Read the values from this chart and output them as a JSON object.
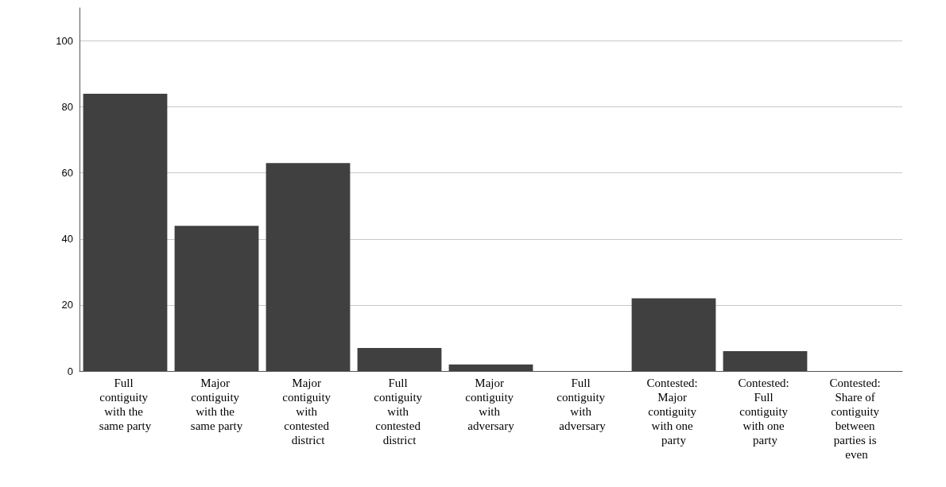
{
  "chart_data": {
    "type": "bar",
    "categories": [
      "Full contiguity with the same party",
      "Major contiguity with the same party",
      "Major contiguity with contested district",
      "Full contiguity with contested district",
      "Major contiguity with adversary",
      "Full contiguity with adversary",
      "Contested: Major contiguity with one party",
      "Contested: Full contiguity with one party",
      "Contested: Share of contiguity between parties is even"
    ],
    "values": [
      84,
      44,
      63,
      7,
      2,
      0,
      22,
      6,
      0
    ],
    "color": "#404040",
    "ylim": [
      0,
      110
    ],
    "yticks": [
      0,
      20,
      40,
      60,
      80,
      100
    ],
    "grid": "y"
  }
}
